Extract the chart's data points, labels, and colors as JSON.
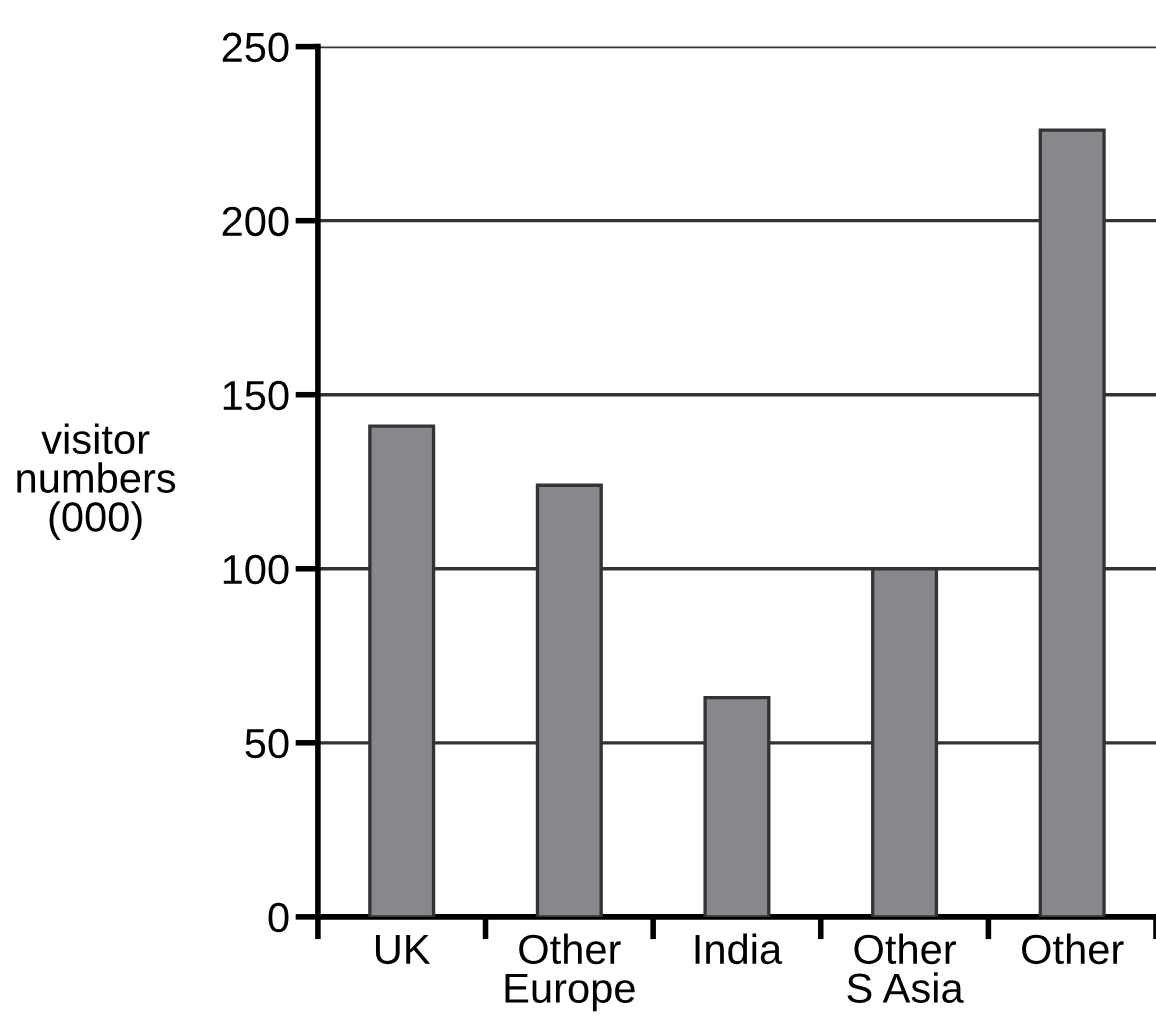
{
  "chart_data": {
    "type": "bar",
    "ylabel": "visitor\nnumbers\n(000)",
    "categories": [
      "UK",
      "Other\nEurope",
      "India",
      "Other\nS Asia",
      "Other"
    ],
    "values": [
      141,
      124,
      63,
      100,
      226
    ],
    "color": "#87888c",
    "ylim": [
      0,
      250
    ],
    "yticks": [
      0,
      50,
      100,
      150,
      200,
      250
    ],
    "grid": "y",
    "legend": false
  }
}
